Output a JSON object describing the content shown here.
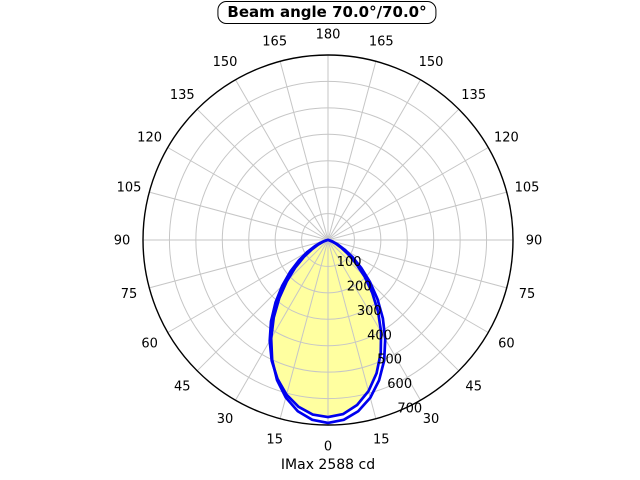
{
  "chart": {
    "title": "Beam angle 70.0°/70.0°",
    "caption": "IMax 2588 cd",
    "imax_value": "2588",
    "imax_unit": "cd",
    "colors": {
      "background": "#ffffff",
      "grid": "#c6c6c6",
      "axis": "#000000",
      "curve": "#0000ee",
      "fill": "#ffffa0",
      "text": "#000000"
    }
  },
  "chart_data": {
    "type": "polar",
    "title": "Beam angle 70.0°/70.0°",
    "caption": "IMax 2588 cd",
    "angle_ticks_deg": [
      0,
      15,
      30,
      45,
      60,
      75,
      90,
      105,
      120,
      135,
      150,
      165,
      180
    ],
    "r_ticks": [
      100,
      200,
      300,
      400,
      500,
      600,
      700
    ],
    "r_max": 700,
    "r_label_angle_deg": 22.5,
    "grid": true,
    "angles_deg": [
      0,
      5,
      10,
      15,
      20,
      25,
      30,
      35,
      40,
      45,
      50,
      55,
      60,
      65,
      70,
      75,
      80,
      85,
      90
    ],
    "series": [
      {
        "name": "beam-curve-filled",
        "filled": true,
        "r_left": [
          670,
          663,
          641,
          606,
          559,
          504,
          441,
          376,
          309,
          245,
          186,
          134,
          90,
          55,
          30,
          13,
          4,
          1,
          0
        ],
        "r_right": [
          670,
          661,
          634,
          592,
          537,
          472,
          402,
          330,
          260,
          196,
          139,
          93,
          57,
          31,
          15,
          5,
          2,
          0,
          0
        ]
      },
      {
        "name": "beam-curve-outline",
        "filled": false,
        "r_left": [
          692,
          683,
          658,
          617,
          564,
          500,
          430,
          358,
          287,
          220,
          161,
          111,
          70,
          40,
          20,
          8,
          3,
          1,
          0
        ],
        "r_right": [
          692,
          683,
          658,
          618,
          565,
          503,
          433,
          362,
          291,
          224,
          164,
          114,
          73,
          42,
          21,
          9,
          3,
          1,
          0
        ]
      }
    ]
  }
}
